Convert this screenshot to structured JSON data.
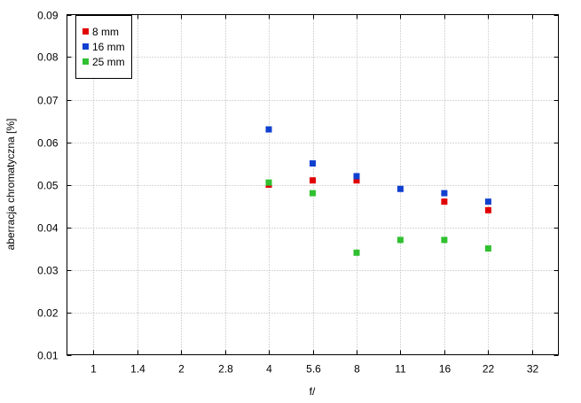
{
  "chart_data": {
    "type": "scatter",
    "title": "",
    "xlabel": "f/",
    "ylabel": "aberracja chromatyczna [%]",
    "x_scale": "log",
    "x_ticks": [
      "1",
      "1.4",
      "2",
      "2.8",
      "4",
      "5.6",
      "8",
      "11",
      "16",
      "22",
      "32"
    ],
    "ylim": [
      0.01,
      0.09
    ],
    "y_ticks": [
      "0.01",
      "0.02",
      "0.03",
      "0.04",
      "0.05",
      "0.06",
      "0.07",
      "0.08",
      "0.09"
    ],
    "grid": true,
    "legend_position": "top-left",
    "series": [
      {
        "name": "8 mm",
        "color": "#e00000",
        "points": [
          {
            "x": "4",
            "y": 0.05
          },
          {
            "x": "5.6",
            "y": 0.051
          },
          {
            "x": "8",
            "y": 0.051
          },
          {
            "x": "16",
            "y": 0.046
          },
          {
            "x": "22",
            "y": 0.044
          }
        ]
      },
      {
        "name": "16 mm",
        "color": "#1040d0",
        "points": [
          {
            "x": "4",
            "y": 0.063
          },
          {
            "x": "5.6",
            "y": 0.055
          },
          {
            "x": "8",
            "y": 0.052
          },
          {
            "x": "11",
            "y": 0.049
          },
          {
            "x": "16",
            "y": 0.048
          },
          {
            "x": "22",
            "y": 0.046
          }
        ]
      },
      {
        "name": "25 mm",
        "color": "#30c030",
        "points": [
          {
            "x": "4",
            "y": 0.0505
          },
          {
            "x": "5.6",
            "y": 0.048
          },
          {
            "x": "8",
            "y": 0.034
          },
          {
            "x": "11",
            "y": 0.037
          },
          {
            "x": "16",
            "y": 0.037
          },
          {
            "x": "22",
            "y": 0.035
          }
        ]
      }
    ]
  }
}
